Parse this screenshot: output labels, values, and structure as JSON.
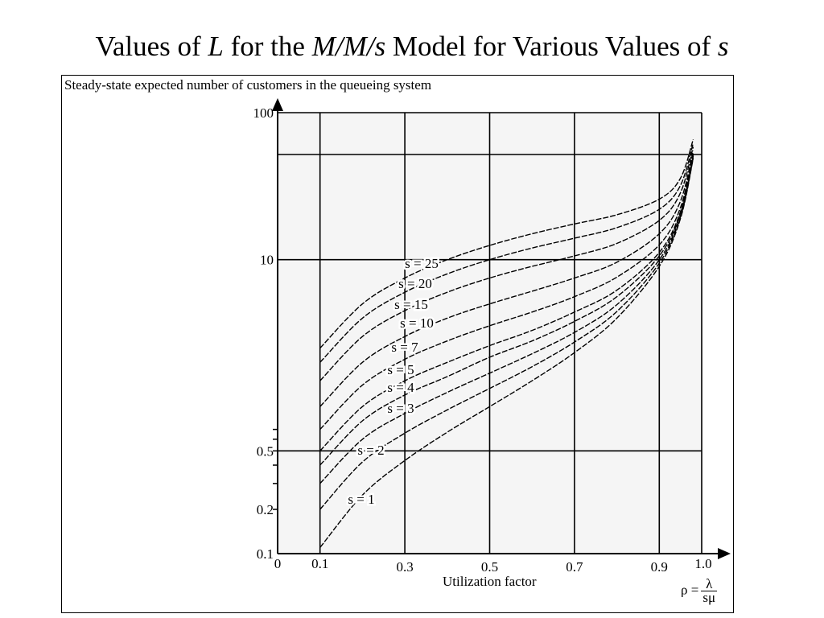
{
  "title": {
    "parts": [
      {
        "text": "Values of ",
        "italic": false
      },
      {
        "text": "L",
        "italic": true
      },
      {
        "text": " for the ",
        "italic": false
      },
      {
        "text": "M/M/s",
        "italic": true
      },
      {
        "text": " Model for Various Values of ",
        "italic": false
      },
      {
        "text": "s",
        "italic": true
      }
    ]
  },
  "chart_data": {
    "type": "line",
    "title": "Values of L for the M/M/s Model for Various Values of s",
    "ylabel": "Steady-state expected number of customers in the queueing system",
    "xlabel": "Utilization factor",
    "rho_formula": {
      "lhs": "ρ =",
      "numerator": "λ",
      "denominator": "sμ"
    },
    "xlim": [
      0,
      1.0
    ],
    "ylim": [
      0.1,
      100
    ],
    "y_scale": "log",
    "grid": true,
    "x_ticks": [
      {
        "value": 0,
        "label": "0"
      },
      {
        "value": 0.1,
        "label": "0.1"
      },
      {
        "value": 0.3,
        "label": "0.3"
      },
      {
        "value": 0.5,
        "label": "0.5"
      },
      {
        "value": 0.7,
        "label": "0.7"
      },
      {
        "value": 0.9,
        "label": "0.9"
      },
      {
        "value": 1.0,
        "label": "1.0"
      }
    ],
    "y_ticks": [
      {
        "value": 0.1,
        "label": "0.1"
      },
      {
        "value": 0.2,
        "label": "0.2"
      },
      {
        "value": 0.5,
        "label": "0.5"
      },
      {
        "value": 10,
        "label": "10"
      },
      {
        "value": 100,
        "label": "100"
      }
    ],
    "series": [
      {
        "name": "s = 1",
        "x": [
          0.1,
          0.2,
          0.3,
          0.4,
          0.5,
          0.6,
          0.7,
          0.8,
          0.9,
          0.95,
          0.98
        ],
        "values": [
          0.11,
          0.25,
          0.43,
          0.67,
          1.0,
          1.5,
          2.33,
          4.0,
          9.0,
          19.0,
          49.0
        ]
      },
      {
        "name": "s = 2",
        "x": [
          0.1,
          0.2,
          0.3,
          0.4,
          0.5,
          0.6,
          0.7,
          0.8,
          0.9,
          0.95,
          0.98
        ],
        "values": [
          0.2,
          0.42,
          0.66,
          0.95,
          1.33,
          1.87,
          2.75,
          4.44,
          9.47,
          19.5,
          49.5
        ]
      },
      {
        "name": "s = 3",
        "x": [
          0.1,
          0.2,
          0.3,
          0.4,
          0.5,
          0.6,
          0.7,
          0.8,
          0.9,
          0.95,
          0.98
        ],
        "values": [
          0.3,
          0.6,
          0.9,
          1.25,
          1.69,
          2.29,
          3.2,
          4.94,
          9.98,
          20.0,
          50.0
        ]
      },
      {
        "name": "s = 4",
        "x": [
          0.1,
          0.2,
          0.3,
          0.4,
          0.5,
          0.6,
          0.7,
          0.8,
          0.9,
          0.95,
          0.98
        ],
        "values": [
          0.4,
          0.8,
          1.2,
          1.6,
          2.17,
          2.8,
          3.8,
          5.6,
          10.6,
          20.6,
          50.6
        ]
      },
      {
        "name": "s = 5",
        "x": [
          0.1,
          0.2,
          0.3,
          0.4,
          0.5,
          0.6,
          0.7,
          0.8,
          0.9,
          0.95,
          0.98
        ],
        "values": [
          0.5,
          1.0,
          1.5,
          2.0,
          2.6,
          3.3,
          4.4,
          6.2,
          11.2,
          21.2,
          51.2
        ]
      },
      {
        "name": "s = 7",
        "x": [
          0.1,
          0.2,
          0.3,
          0.4,
          0.5,
          0.6,
          0.7,
          0.8,
          0.9,
          0.95,
          0.98
        ],
        "values": [
          0.7,
          1.4,
          2.1,
          2.8,
          3.55,
          4.4,
          5.6,
          7.6,
          12.6,
          22.6,
          52.6
        ]
      },
      {
        "name": "s = 10",
        "x": [
          0.1,
          0.2,
          0.3,
          0.4,
          0.5,
          0.6,
          0.7,
          0.8,
          0.9,
          0.95,
          0.98
        ],
        "values": [
          1.0,
          2.0,
          3.0,
          4.0,
          5.0,
          6.1,
          7.5,
          9.6,
          15.0,
          25.0,
          55.0
        ]
      },
      {
        "name": "s = 15",
        "x": [
          0.1,
          0.2,
          0.3,
          0.4,
          0.5,
          0.6,
          0.7,
          0.8,
          0.9,
          0.95,
          0.98
        ],
        "values": [
          1.5,
          3.0,
          4.5,
          6.0,
          7.5,
          9.0,
          10.6,
          12.9,
          18.5,
          28.5,
          58.5
        ]
      },
      {
        "name": "s = 20",
        "x": [
          0.1,
          0.2,
          0.3,
          0.4,
          0.5,
          0.6,
          0.7,
          0.8,
          0.9,
          0.95,
          0.98
        ],
        "values": [
          2.0,
          4.0,
          6.0,
          8.0,
          10.0,
          12.0,
          14.0,
          16.5,
          22.0,
          32.0,
          62.0
        ]
      },
      {
        "name": "s = 25",
        "x": [
          0.1,
          0.2,
          0.3,
          0.4,
          0.5,
          0.6,
          0.7,
          0.8,
          0.9,
          0.95,
          0.98
        ],
        "values": [
          2.5,
          5.0,
          7.5,
          10.0,
          12.5,
          15.0,
          17.5,
          20.2,
          25.8,
          35.8,
          65.8
        ]
      }
    ]
  }
}
